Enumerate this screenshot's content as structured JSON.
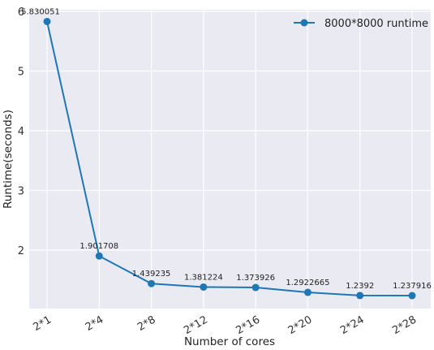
{
  "chart_data": {
    "type": "line",
    "xlabel": "Number of cores",
    "ylabel": "Runtime(seconds)",
    "categories": [
      "2*1",
      "2*4",
      "2*8",
      "2*12",
      "2*16",
      "2*20",
      "2*24",
      "2*28"
    ],
    "series": [
      {
        "name": "8000*8000 runtime",
        "values": [
          5.830051,
          1.901708,
          1.439235,
          1.381224,
          1.373926,
          1.2922665,
          1.2392,
          1.237916
        ],
        "labels": [
          "5.830051",
          "1.901708",
          "1.439235",
          "1.381224",
          "1.373926",
          "1.2922665",
          "1.2392",
          "1.237916"
        ],
        "color": "#1f77b4",
        "marker": "circle"
      }
    ],
    "ylim": [
      1.0,
      6.0
    ],
    "yticks": [
      2,
      3,
      4,
      5,
      6
    ],
    "grid": true,
    "legend_position": "top-right",
    "background": "#eaeaf2",
    "grid_color": "#ffffff"
  }
}
